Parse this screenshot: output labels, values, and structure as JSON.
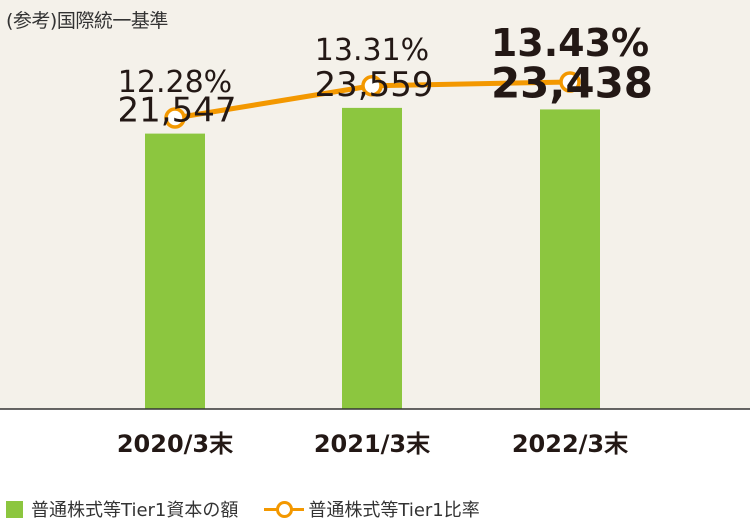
{
  "note": "(参考)国際統一基準",
  "colors": {
    "background": "#f4f1ea",
    "bar": "#8cc63f",
    "line": "#f39800",
    "axis": "#333333",
    "text": "#231815"
  },
  "chart_data": {
    "type": "bar",
    "categories": [
      "2020/3末",
      "2021/3末",
      "2022/3末"
    ],
    "ylim": [
      0,
      32000
    ],
    "y2lim": [
      8,
      14.5
    ],
    "grid": false,
    "legend_position": "bottom",
    "series": [
      {
        "name": "普通株式等Tier1資本の額",
        "type": "bar",
        "values": [
          21547,
          23559,
          23438
        ],
        "labels": [
          "21,547",
          "23,559",
          "23,438"
        ]
      },
      {
        "name": "普通株式等Tier1比率",
        "type": "line",
        "values": [
          12.28,
          13.31,
          13.43
        ],
        "labels": [
          "12.28%",
          "13.31%",
          "13.43%"
        ]
      }
    ]
  }
}
